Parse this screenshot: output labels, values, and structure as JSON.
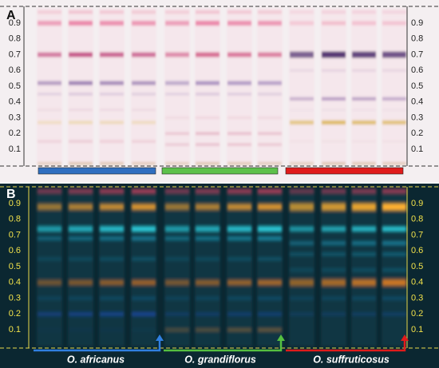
{
  "panels": [
    {
      "label": "A",
      "ticks": [
        "0.9",
        "0.8",
        "0.7",
        "0.6",
        "0.5",
        "0.4",
        "0.3",
        "0.2",
        "0.1"
      ]
    },
    {
      "label": "B",
      "ticks": [
        "0.9",
        "0.8",
        "0.7",
        "0.6",
        "0.5",
        "0.4",
        "0.3",
        "0.2",
        "0.1"
      ]
    }
  ],
  "species": [
    "O. africanus",
    "O. grandiflorus",
    "O. suffruticosus"
  ]
}
